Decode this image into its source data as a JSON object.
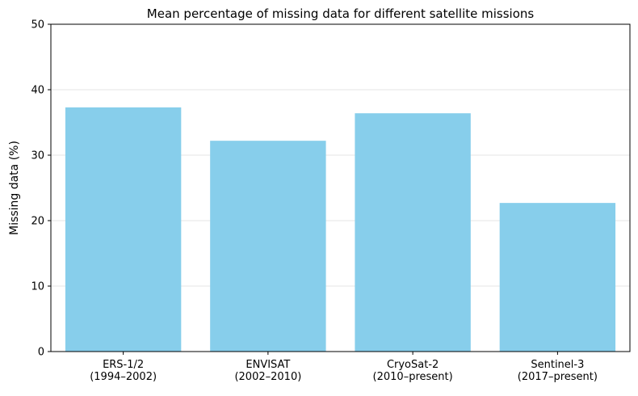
{
  "chart_data": {
    "type": "bar",
    "title": "Mean percentage of missing data for different satellite missions",
    "xlabel": "",
    "ylabel": "Missing data (%)",
    "ylim": [
      0,
      50
    ],
    "yticks": [
      0,
      10,
      20,
      30,
      40,
      50
    ],
    "grid": true,
    "categories": [
      [
        "ERS-1/2",
        "(1994–2002)"
      ],
      [
        "ENVISAT",
        "(2002–2010)"
      ],
      [
        "CryoSat-2",
        "(2010–present)"
      ],
      [
        "Sentinel-3",
        "(2017–present)"
      ]
    ],
    "values": [
      37.3,
      32.2,
      36.4,
      22.7
    ],
    "bar_color": "#87ceeb"
  }
}
